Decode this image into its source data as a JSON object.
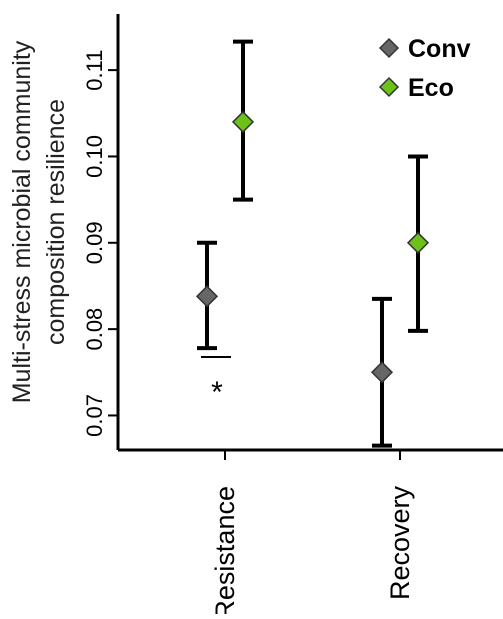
{
  "chart_data": {
    "type": "scatter",
    "title": "",
    "ylabel_lines": [
      "Multi-stress microbial community",
      "composition resilience"
    ],
    "xlabel": "",
    "categories": [
      "Resistance",
      "Recovery"
    ],
    "ylim": [
      0.066,
      0.1165
    ],
    "yticks": [
      0.07,
      0.08,
      0.09,
      0.1,
      0.11
    ],
    "ytick_labels": [
      "0.07",
      "0.08",
      "0.09",
      "0.10",
      "0.11"
    ],
    "grid": false,
    "legend_position": "top-right",
    "series": [
      {
        "name": "Conv",
        "color": "#666666",
        "marker": "diamond",
        "points": [
          {
            "category": "Resistance",
            "y": 0.0838,
            "lower": 0.0778,
            "upper": 0.09
          },
          {
            "category": "Recovery",
            "y": 0.075,
            "lower": 0.0665,
            "upper": 0.0835
          }
        ]
      },
      {
        "name": "Eco",
        "color": "#6cc218",
        "marker": "diamond",
        "points": [
          {
            "category": "Resistance",
            "y": 0.104,
            "lower": 0.095,
            "upper": 0.1133
          },
          {
            "category": "Recovery",
            "y": 0.09,
            "lower": 0.0798,
            "upper": 0.1
          }
        ]
      }
    ],
    "annotations": [
      {
        "category": "Resistance",
        "text": "*",
        "significance_bar": true
      }
    ]
  }
}
